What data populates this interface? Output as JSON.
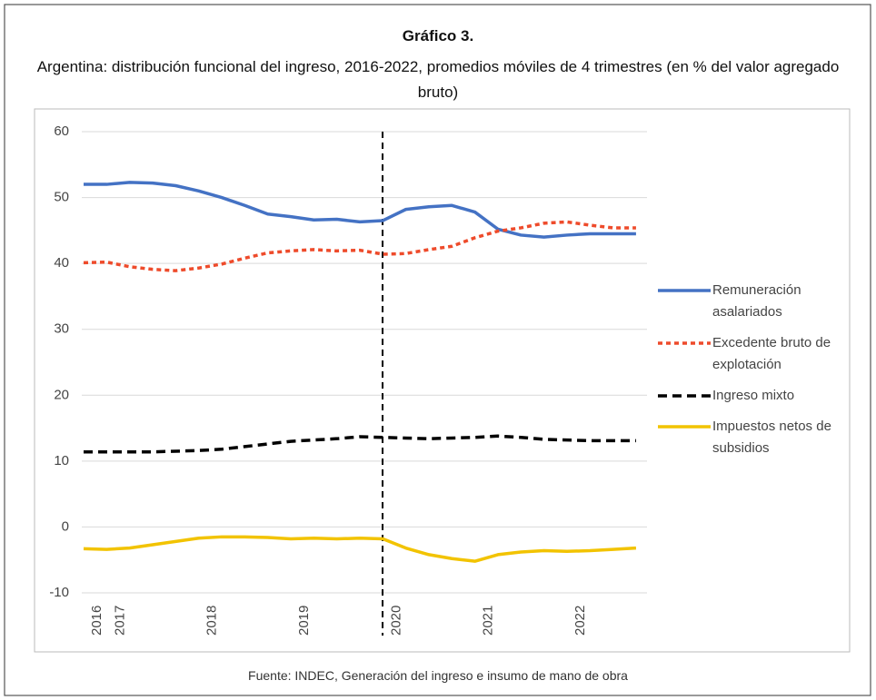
{
  "chart_data": {
    "type": "line",
    "title": "Gráfico 3.",
    "subtitle": "Argentina: distribución funcional del ingreso, 2016-2022, promedios móviles de 4 trimestres (en % del valor agregado bruto)",
    "source": "Fuente: INDEC, Generación del ingreso e insumo de mano de obra",
    "categories": [
      "2016",
      "2017",
      null,
      null,
      null,
      "2018",
      null,
      null,
      null,
      "2019",
      null,
      null,
      null,
      "2020",
      null,
      null,
      null,
      "2021",
      null,
      null,
      null,
      "2022",
      null,
      null,
      null
    ],
    "series": [
      {
        "name": "Remuneración asalariados",
        "color": "#4472c4",
        "dash": "solid",
        "values": [
          52,
          52,
          52.3,
          52.2,
          51.8,
          51,
          50,
          48.8,
          47.5,
          47.1,
          46.6,
          46.7,
          46.3,
          46.5,
          48.2,
          48.6,
          48.8,
          47.8,
          45.2,
          44.3,
          44,
          44.3,
          44.5,
          44.5,
          44.5
        ]
      },
      {
        "name": "Excedente bruto de explotación",
        "color": "#ee4b2b",
        "dash": "dotted",
        "values": [
          40.1,
          40.2,
          39.5,
          39.1,
          38.9,
          39.3,
          39.9,
          40.8,
          41.6,
          41.9,
          42.1,
          41.9,
          42.0,
          41.4,
          41.5,
          42.1,
          42.6,
          43.9,
          44.9,
          45.4,
          46.1,
          46.3,
          45.8,
          45.4,
          45.4
        ]
      },
      {
        "name": "Ingreso mixto",
        "color": "#000000",
        "dash": "dashed",
        "values": [
          11.4,
          11.4,
          11.4,
          11.4,
          11.5,
          11.6,
          11.8,
          12.2,
          12.6,
          13.0,
          13.2,
          13.4,
          13.7,
          13.6,
          13.5,
          13.4,
          13.5,
          13.6,
          13.8,
          13.6,
          13.3,
          13.2,
          13.1,
          13.1,
          13.1
        ]
      },
      {
        "name": "Impuestos netos de subsidios",
        "color": "#f2c300",
        "dash": "solid",
        "values": [
          -3.3,
          -3.4,
          -3.2,
          -2.7,
          -2.2,
          -1.7,
          -1.5,
          -1.5,
          -1.6,
          -1.8,
          -1.7,
          -1.8,
          -1.7,
          -1.8,
          -3.2,
          -4.2,
          -4.8,
          -5.2,
          -4.2,
          -3.8,
          -3.6,
          -3.7,
          -3.6,
          -3.4,
          -3.2
        ]
      }
    ],
    "ylim": [
      -10,
      60
    ],
    "yticks": [
      -10,
      0,
      10,
      20,
      30,
      40,
      50,
      60
    ],
    "grid": true,
    "legend": "right"
  }
}
